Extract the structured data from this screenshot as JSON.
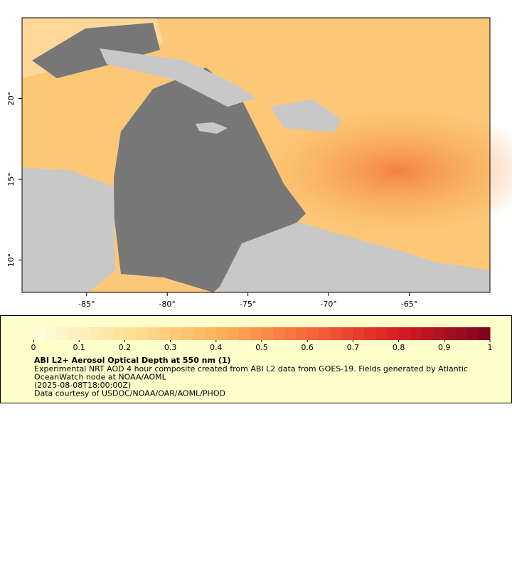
{
  "map": {
    "xlim": [
      -89,
      -60
    ],
    "ylim": [
      8,
      25
    ],
    "xticks": [
      {
        "value": -85,
        "label": "-85°"
      },
      {
        "value": -80,
        "label": "-80°"
      },
      {
        "value": -75,
        "label": "-75°"
      },
      {
        "value": -70,
        "label": "-70°"
      },
      {
        "value": -65,
        "label": "-65°"
      }
    ],
    "yticks": [
      {
        "value": 10,
        "label": "10°"
      },
      {
        "value": 15,
        "label": "15°"
      },
      {
        "value": 20,
        "label": "20°"
      }
    ]
  },
  "colorbar": {
    "lim": [
      0,
      1
    ],
    "ticks": [
      0,
      0.1,
      0.2,
      0.3,
      0.4,
      0.5,
      0.6,
      0.7,
      0.8,
      0.9,
      1
    ],
    "colors": [
      "#fffee0",
      "#fee39a",
      "#fdb45a",
      "#f6693a",
      "#d81c22",
      "#7a0420"
    ]
  },
  "legend": {
    "title": "ABI L2+ Aerosol Optical Depth at 550 nm (1)",
    "lines": [
      "Experimental NRT AOD 4 hour composite created from ABI L2 data from GOES-19. Fields generated by Atlantic",
      "OceanWatch node at NOAA/AOML",
      "(2025-08-08T18:00:00Z)",
      "Data courtesy of USDOC/NOAA/OAR/AOML/PHOD"
    ]
  }
}
